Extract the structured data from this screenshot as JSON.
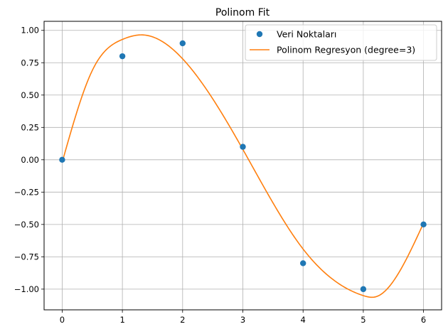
{
  "chart_data": {
    "type": "scatter",
    "title": "Polinom Fit",
    "xlabel": "",
    "ylabel": "",
    "xlim": [
      -0.3,
      6.3
    ],
    "ylim": [
      -1.16,
      1.07
    ],
    "x_ticks": [
      0,
      1,
      2,
      3,
      4,
      5,
      6
    ],
    "x_tick_labels": [
      "0",
      "1",
      "2",
      "3",
      "4",
      "5",
      "6"
    ],
    "y_ticks": [
      1.0,
      0.75,
      0.5,
      0.25,
      0.0,
      -0.25,
      -0.5,
      -0.75,
      -1.0
    ],
    "y_tick_labels": [
      "1.00",
      "0.75",
      "0.50",
      "0.25",
      "0.00",
      "−0.25",
      "−0.50",
      "−0.75",
      "−1.00"
    ],
    "grid": true,
    "legend_position": "top-right",
    "series": [
      {
        "name": "Veri Noktaları",
        "kind": "scatter",
        "color": "#1f77b4",
        "x": [
          0,
          1,
          2,
          3,
          4,
          5,
          6
        ],
        "y": [
          0.0,
          0.8,
          0.9,
          0.1,
          -0.8,
          -1.0,
          -0.5
        ]
      },
      {
        "name": "Polinom Regresyon (degree=3)",
        "kind": "line",
        "color": "#ff7f0e",
        "x": [
          0,
          0.5,
          1,
          1.33,
          2,
          3,
          4,
          5,
          5.2,
          6
        ],
        "y": [
          -0.02,
          0.69,
          0.93,
          0.965,
          0.78,
          0.08,
          -0.69,
          -1.05,
          -1.06,
          -0.49
        ]
      }
    ]
  }
}
